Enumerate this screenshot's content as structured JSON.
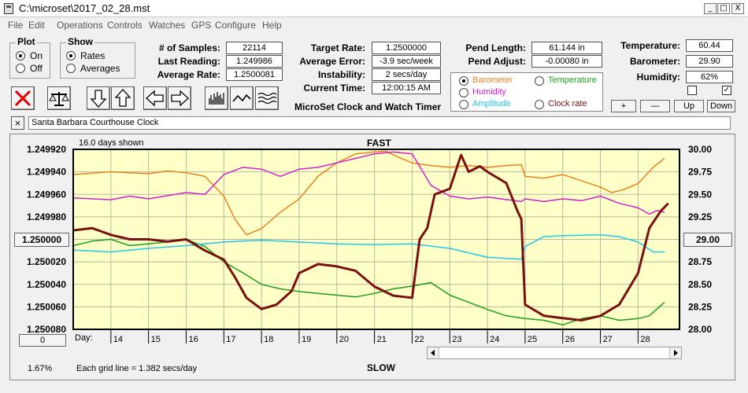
{
  "window": {
    "title": "C:\\microset\\2017_02_28.mst",
    "min_label": "_",
    "max_label": "□",
    "close_label": "X"
  },
  "menu": [
    "File",
    "Edit",
    "Operations",
    "Controls",
    "Watches",
    "GPS",
    "Configure",
    "Help"
  ],
  "plot_group": {
    "label": "Plot",
    "options": [
      "On",
      "Off"
    ],
    "selected": 0
  },
  "show_group": {
    "label": "Show",
    "options": [
      "Rates",
      "Averages"
    ],
    "selected": 0
  },
  "stats": {
    "samples_label": "# of Samples:",
    "samples": "22114",
    "last_reading_label": "Last Reading:",
    "last_reading": "1.249986",
    "average_rate_label": "Average Rate:",
    "average_rate": "1.2500081"
  },
  "timing": {
    "target_rate_label": "Target Rate:",
    "target_rate": "1.2500000",
    "average_error_label": "Average Error:",
    "average_error": "-3.9 sec/week",
    "instability_label": "Instability:",
    "instability": "2 secs/day",
    "current_time_label": "Current Time:",
    "current_time": "12:00:15 AM",
    "app_name": "MicroSet Clock and Watch Timer"
  },
  "pendulum": {
    "length_label": "Pend Length:",
    "length": "61.144 in",
    "adjust_label": "Pend Adjust:",
    "adjust": "-0.00080 in"
  },
  "environment": {
    "temperature_label": "Temperature:",
    "temperature": "60.44",
    "barometer_label": "Barometer:",
    "barometer": "29.90",
    "humidity_label": "Humidity:",
    "humidity": "62%"
  },
  "aux_params": [
    {
      "label": "Barometer",
      "color": "#e8821e",
      "selected": true
    },
    {
      "label": "Temperature",
      "color": "#1aa01a",
      "selected": false
    },
    {
      "label": "Humidity",
      "color": "#d020d0",
      "selected": false
    },
    {
      "label": "Amplitude",
      "color": "#20c8e8",
      "selected": false
    },
    {
      "label": "Clock rate",
      "color": "#7a1010",
      "selected": false
    }
  ],
  "scale_buttons": {
    "plus": "+",
    "minus": "—",
    "up": "Up",
    "down": "Down"
  },
  "checkboxes": {
    "left_checked": false,
    "right_checked": true,
    "check_glyph": "✓"
  },
  "clock_label": "Santa Barbara Courthouse Clock",
  "label_close": "×",
  "chart_data": {
    "type": "line",
    "days_shown": "16.0 days shown",
    "top_label": "FAST",
    "bottom_label": "SLOW",
    "grid_note": "Each grid line = 1.382 secs/day",
    "day_label": "Day:",
    "left_axis": {
      "ticks": [
        "1.249920",
        "1.249940",
        "1.249960",
        "1.249980",
        "1.250000",
        "1.250020",
        "1.250040",
        "1.250060",
        "1.250080"
      ],
      "range": [
        1.24992,
        1.25008
      ]
    },
    "right_axis": {
      "ticks": [
        "30.00",
        "29.75",
        "29.50",
        "29.25",
        "29.00",
        "28.75",
        "28.50",
        "28.25",
        "28.00"
      ],
      "range": [
        30.0,
        28.0
      ]
    },
    "center_left_value": "1.250000",
    "center_right_value": "29.00",
    "x_range": [
      13.0,
      29.1
    ],
    "x_ticks": [
      "14",
      "15",
      "16",
      "17",
      "18",
      "19",
      "20",
      "21",
      "22",
      "23",
      "24",
      "25",
      "26",
      "27",
      "28"
    ],
    "x_tick_values": [
      14,
      15,
      16,
      17,
      18,
      19,
      20,
      21,
      22,
      23,
      24,
      25,
      26,
      27,
      28
    ],
    "scroll_value": "0",
    "status_pct": "1.67%",
    "series": [
      {
        "name": "Barometer",
        "axis": "right",
        "color": "#e8821e",
        "x": [
          13.0,
          14.0,
          15.0,
          15.5,
          16.0,
          16.5,
          17.0,
          17.3,
          17.6,
          18.0,
          18.5,
          19.0,
          19.5,
          20.0,
          20.5,
          21.0,
          21.3,
          21.6,
          22.0,
          22.5,
          23.0,
          23.5,
          24.0,
          24.5,
          24.9,
          25.0,
          25.5,
          26.0,
          26.5,
          27.0,
          27.3,
          27.6,
          28.0,
          28.4,
          28.7
        ],
        "values": [
          29.72,
          29.75,
          29.73,
          29.76,
          29.74,
          29.7,
          29.48,
          29.22,
          29.05,
          29.12,
          29.3,
          29.45,
          29.7,
          29.85,
          29.95,
          29.97,
          29.98,
          29.92,
          29.85,
          29.82,
          29.8,
          29.82,
          29.8,
          29.82,
          29.83,
          29.7,
          29.68,
          29.72,
          29.65,
          29.58,
          29.52,
          29.55,
          29.62,
          29.8,
          29.9
        ]
      },
      {
        "name": "Temperature",
        "axis": "right",
        "color": "#1aa01a",
        "x": [
          13.0,
          13.5,
          14.0,
          14.5,
          15.0,
          15.5,
          16.0,
          16.5,
          17.0,
          17.5,
          18.0,
          18.5,
          19.0,
          19.5,
          20.0,
          20.5,
          21.0,
          21.5,
          22.0,
          22.5,
          23.0,
          23.5,
          24.0,
          24.5,
          25.0,
          25.5,
          26.0,
          26.5,
          27.0,
          27.5,
          28.0,
          28.3,
          28.7
        ],
        "values": [
          28.93,
          28.98,
          29.0,
          28.93,
          28.95,
          28.97,
          29.0,
          28.92,
          28.75,
          28.63,
          28.5,
          28.45,
          28.42,
          28.4,
          28.38,
          28.36,
          28.4,
          28.45,
          28.48,
          28.52,
          28.38,
          28.3,
          28.22,
          28.15,
          28.12,
          28.1,
          28.05,
          28.12,
          28.15,
          28.1,
          28.12,
          28.15,
          28.3
        ]
      },
      {
        "name": "Humidity",
        "axis": "right",
        "color": "#d020d0",
        "x": [
          13.0,
          14.0,
          14.5,
          15.0,
          16.0,
          16.5,
          17.0,
          17.5,
          18.0,
          18.5,
          19.0,
          19.5,
          20.0,
          20.5,
          21.0,
          21.5,
          22.0,
          22.5,
          23.0,
          23.5,
          24.0,
          24.9,
          25.0,
          25.5,
          26.0,
          26.5,
          27.0,
          27.5,
          28.0,
          28.3,
          28.5,
          28.7
        ],
        "values": [
          29.46,
          29.44,
          29.48,
          29.45,
          29.52,
          29.5,
          29.72,
          29.8,
          29.78,
          29.7,
          29.78,
          29.8,
          29.85,
          29.9,
          29.95,
          29.97,
          29.95,
          29.6,
          29.48,
          29.45,
          29.47,
          29.42,
          29.45,
          29.42,
          29.45,
          29.43,
          29.48,
          29.4,
          29.35,
          29.28,
          29.32,
          29.3
        ]
      },
      {
        "name": "Amplitude",
        "axis": "right",
        "color": "#20c8e8",
        "x": [
          13.0,
          14.0,
          15.0,
          16.0,
          17.0,
          18.0,
          19.0,
          20.0,
          21.0,
          22.0,
          23.0,
          24.0,
          24.9,
          25.0,
          25.5,
          26.0,
          27.0,
          27.5,
          28.0,
          28.4,
          28.7
        ],
        "values": [
          28.88,
          28.86,
          28.9,
          28.93,
          28.97,
          28.99,
          28.97,
          28.95,
          28.94,
          28.95,
          28.9,
          28.8,
          28.78,
          28.92,
          29.03,
          29.04,
          29.05,
          29.03,
          28.97,
          28.86,
          28.86
        ]
      },
      {
        "name": "Clock rate",
        "axis": "left",
        "color": "#7a1010",
        "x": [
          13.0,
          13.5,
          14.0,
          14.5,
          15.0,
          15.5,
          16.0,
          16.5,
          17.0,
          17.3,
          17.6,
          18.0,
          18.4,
          18.8,
          19.0,
          19.5,
          20.0,
          20.5,
          21.0,
          21.5,
          22.0,
          22.2,
          22.4,
          22.6,
          23.0,
          23.3,
          23.5,
          23.8,
          24.0,
          24.5,
          24.8,
          24.9,
          25.0,
          25.5,
          26.0,
          26.5,
          27.0,
          27.5,
          28.0,
          28.3,
          28.6,
          28.8
        ],
        "values": [
          1.249992,
          1.24999,
          1.249996,
          1.25,
          1.25,
          1.250002,
          1.25,
          1.25001,
          1.250018,
          1.250034,
          1.250052,
          1.250062,
          1.250058,
          1.250046,
          1.25003,
          1.250022,
          1.250024,
          1.250028,
          1.250042,
          1.25005,
          1.250052,
          1.25,
          1.24999,
          1.24996,
          1.249955,
          1.249925,
          1.24994,
          1.249935,
          1.24994,
          1.24995,
          1.249975,
          1.249982,
          1.250058,
          1.250068,
          1.25007,
          1.250072,
          1.250068,
          1.250058,
          1.25003,
          1.24999,
          1.249975,
          1.249968
        ]
      }
    ]
  }
}
